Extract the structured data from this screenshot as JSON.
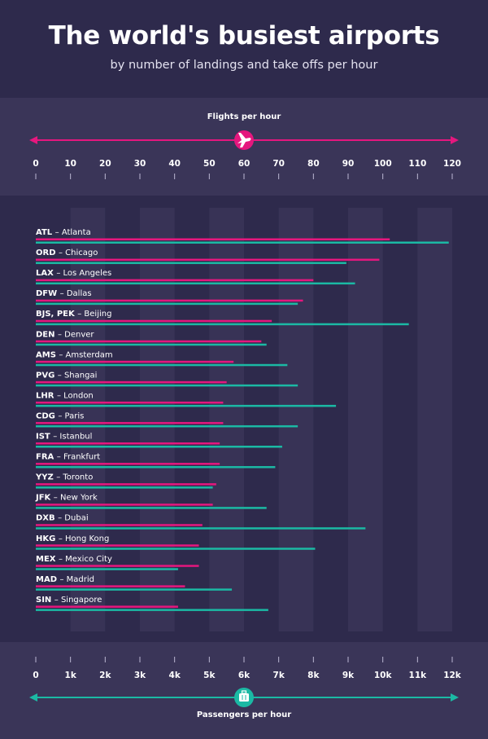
{
  "header": {
    "title": "The world's busiest airports",
    "subtitle": "by number of landings and take offs per hour"
  },
  "colors": {
    "background": "#2e2a4c",
    "band": "#3a3558",
    "flights": "#e5177e",
    "passengers": "#1bb9a4"
  },
  "icons": {
    "top": "airplane-icon",
    "bottom": "luggage-icon"
  },
  "chart_data": {
    "type": "bar",
    "top_axis": {
      "label": "Flights per hour",
      "range": [
        0,
        120
      ],
      "ticks": [
        "0",
        "10",
        "20",
        "30",
        "40",
        "50",
        "60",
        "70",
        "80",
        "90",
        "100",
        "110",
        "120"
      ]
    },
    "bottom_axis": {
      "label": "Passengers per hour",
      "range": [
        0,
        12000
      ],
      "ticks": [
        "0",
        "1k",
        "2k",
        "3k",
        "4k",
        "5k",
        "6k",
        "7k",
        "8k",
        "9k",
        "10k",
        "11k",
        "12k"
      ]
    },
    "airports": [
      {
        "code": "ATL",
        "city": "– Atlanta",
        "flights": 102,
        "passengers": 11900
      },
      {
        "code": "ORD",
        "city": "– Chicago",
        "flights": 99,
        "passengers": 8950
      },
      {
        "code": "LAX",
        "city": "– Los Angeles",
        "flights": 80,
        "passengers": 9200
      },
      {
        "code": "DFW",
        "city": "– Dallas",
        "flights": 77,
        "passengers": 7550
      },
      {
        "code": "BJS, PEK",
        "city": "– Beijing",
        "flights": 68,
        "passengers": 10750
      },
      {
        "code": "DEN",
        "city": "– Denver",
        "flights": 65,
        "passengers": 6650
      },
      {
        "code": "AMS",
        "city": "– Amsterdam",
        "flights": 57,
        "passengers": 7250
      },
      {
        "code": "PVG",
        "city": "– Shangai",
        "flights": 55,
        "passengers": 7550
      },
      {
        "code": "LHR",
        "city": "– London",
        "flights": 54,
        "passengers": 8650
      },
      {
        "code": "CDG",
        "city": "– Paris",
        "flights": 54,
        "passengers": 7550
      },
      {
        "code": "IST",
        "city": "– Istanbul",
        "flights": 53,
        "passengers": 7100
      },
      {
        "code": "FRA",
        "city": "– Frankfurt",
        "flights": 53,
        "passengers": 6900
      },
      {
        "code": "YYZ",
        "city": "– Toronto",
        "flights": 52,
        "passengers": 5100
      },
      {
        "code": "JFK",
        "city": "– New York",
        "flights": 51,
        "passengers": 6650
      },
      {
        "code": "DXB",
        "city": "– Dubai",
        "flights": 48,
        "passengers": 9500
      },
      {
        "code": "HKG",
        "city": "– Hong Kong",
        "flights": 47,
        "passengers": 8050
      },
      {
        "code": "MEX",
        "city": "– Mexico City",
        "flights": 47,
        "passengers": 4100
      },
      {
        "code": "MAD",
        "city": "– Madrid",
        "flights": 43,
        "passengers": 5650
      },
      {
        "code": "SIN",
        "city": "– Singapore",
        "flights": 41,
        "passengers": 6700
      }
    ]
  }
}
